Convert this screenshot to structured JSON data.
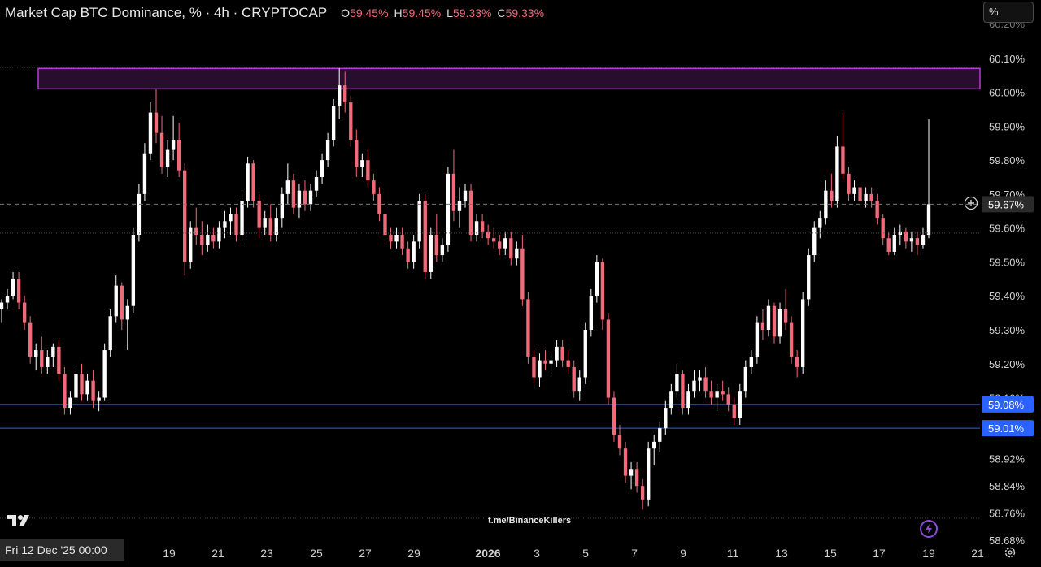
{
  "header": {
    "title": "Market Cap BTC Dominance, % · 4h · CRYPTOCAP",
    "ohlc": [
      {
        "key": "O",
        "value": "59.45%"
      },
      {
        "key": "H",
        "value": "59.45%"
      },
      {
        "key": "L",
        "value": "59.33%"
      },
      {
        "key": "C",
        "value": "59.33%"
      }
    ]
  },
  "unit_selector": "%",
  "watermark": "t.me/BinanceKillers",
  "crosshair_date": "Fri 12 Dec '25   00:00",
  "colors": {
    "background": "#000000",
    "up": "#ffffff",
    "down": "#f06a7a",
    "zone": "#b43cd2",
    "support_line": "#2962ff",
    "axis_text": "#d0d0d0"
  },
  "chart_data": {
    "type": "candlestick",
    "symbol": "BTC.D",
    "timeframe": "4h",
    "ylim": [
      58.68,
      60.2
    ],
    "y_ticks": [
      "60.10%",
      "60.00%",
      "59.90%",
      "59.80%",
      "59.70%",
      "59.60%",
      "59.50%",
      "59.40%",
      "59.30%",
      "59.20%",
      "59.10%",
      "58.92%",
      "58.84%",
      "58.76%",
      "58.68%"
    ],
    "x_ticks": [
      "19",
      "21",
      "23",
      "25",
      "27",
      "29",
      "2026",
      "3",
      "5",
      "7",
      "9",
      "11",
      "13",
      "15",
      "17",
      "19",
      "21"
    ],
    "last_price": "59.67%",
    "supply_zone": {
      "low": 60.01,
      "high": 60.07
    },
    "support_lines": [
      {
        "value": 59.08,
        "label": "59.08%"
      },
      {
        "value": 59.01,
        "label": "59.01%"
      }
    ],
    "candles": [
      [
        59.36,
        59.39,
        59.32,
        59.38
      ],
      [
        59.38,
        59.42,
        59.36,
        59.4
      ],
      [
        59.4,
        59.47,
        59.39,
        59.45
      ],
      [
        59.45,
        59.47,
        59.36,
        59.38
      ],
      [
        59.38,
        59.4,
        59.3,
        59.32
      ],
      [
        59.32,
        59.34,
        59.2,
        59.22
      ],
      [
        59.22,
        59.26,
        59.18,
        59.24
      ],
      [
        59.24,
        59.28,
        59.17,
        59.19
      ],
      [
        59.19,
        59.24,
        59.17,
        59.22
      ],
      [
        59.22,
        59.26,
        59.19,
        59.25
      ],
      [
        59.25,
        59.27,
        59.15,
        59.17
      ],
      [
        59.17,
        59.19,
        59.05,
        59.07
      ],
      [
        59.07,
        59.12,
        59.05,
        59.1
      ],
      [
        59.1,
        59.19,
        59.09,
        59.17
      ],
      [
        59.17,
        59.2,
        59.09,
        59.11
      ],
      [
        59.11,
        59.17,
        59.09,
        59.15
      ],
      [
        59.15,
        59.18,
        59.07,
        59.09
      ],
      [
        59.09,
        59.12,
        59.06,
        59.1
      ],
      [
        59.1,
        59.26,
        59.09,
        59.24
      ],
      [
        59.24,
        59.36,
        59.22,
        59.34
      ],
      [
        59.34,
        59.46,
        59.32,
        59.43
      ],
      [
        59.43,
        59.44,
        59.3,
        59.33
      ],
      [
        59.33,
        59.39,
        59.24,
        59.37
      ],
      [
        59.37,
        59.6,
        59.35,
        59.58
      ],
      [
        59.58,
        59.73,
        59.56,
        59.7
      ],
      [
        59.7,
        59.85,
        59.68,
        59.82
      ],
      [
        59.82,
        59.97,
        59.8,
        59.94
      ],
      [
        59.94,
        60.01,
        59.85,
        59.88
      ],
      [
        59.88,
        59.93,
        59.76,
        59.78
      ],
      [
        59.78,
        59.86,
        59.75,
        59.83
      ],
      [
        59.83,
        59.93,
        59.8,
        59.86
      ],
      [
        59.86,
        59.91,
        59.75,
        59.77
      ],
      [
        59.77,
        59.79,
        59.46,
        59.5
      ],
      [
        59.5,
        59.62,
        59.48,
        59.6
      ],
      [
        59.6,
        59.66,
        59.55,
        59.58
      ],
      [
        59.58,
        59.62,
        59.52,
        59.55
      ],
      [
        59.55,
        59.61,
        59.53,
        59.58
      ],
      [
        59.58,
        59.6,
        59.54,
        59.56
      ],
      [
        59.56,
        59.62,
        59.54,
        59.6
      ],
      [
        59.6,
        59.65,
        59.57,
        59.62
      ],
      [
        59.62,
        59.66,
        59.58,
        59.64
      ],
      [
        59.64,
        59.66,
        59.56,
        59.58
      ],
      [
        59.58,
        59.7,
        59.56,
        59.68
      ],
      [
        59.68,
        59.81,
        59.66,
        59.79
      ],
      [
        59.79,
        59.8,
        59.66,
        59.68
      ],
      [
        59.68,
        59.7,
        59.57,
        59.6
      ],
      [
        59.6,
        59.65,
        59.58,
        59.63
      ],
      [
        59.63,
        59.67,
        59.56,
        59.58
      ],
      [
        59.58,
        59.66,
        59.56,
        59.63
      ],
      [
        59.63,
        59.72,
        59.6,
        59.7
      ],
      [
        59.7,
        59.79,
        59.67,
        59.74
      ],
      [
        59.74,
        59.76,
        59.64,
        59.66
      ],
      [
        59.66,
        59.73,
        59.63,
        59.71
      ],
      [
        59.71,
        59.74,
        59.65,
        59.67
      ],
      [
        59.67,
        59.73,
        59.65,
        59.71
      ],
      [
        59.71,
        59.77,
        59.69,
        59.75
      ],
      [
        59.75,
        59.82,
        59.73,
        59.8
      ],
      [
        59.8,
        59.88,
        59.78,
        59.86
      ],
      [
        59.86,
        59.98,
        59.84,
        59.96
      ],
      [
        59.96,
        60.07,
        59.92,
        60.02
      ],
      [
        60.02,
        60.06,
        59.94,
        59.97
      ],
      [
        59.97,
        59.99,
        59.84,
        59.86
      ],
      [
        59.86,
        59.89,
        59.75,
        59.78
      ],
      [
        59.78,
        59.82,
        59.75,
        59.8
      ],
      [
        59.8,
        59.83,
        59.72,
        59.74
      ],
      [
        59.74,
        59.76,
        59.68,
        59.7
      ],
      [
        59.7,
        59.72,
        59.62,
        59.64
      ],
      [
        59.64,
        59.66,
        59.56,
        59.58
      ],
      [
        59.58,
        59.6,
        59.54,
        59.56
      ],
      [
        59.56,
        59.6,
        59.54,
        59.58
      ],
      [
        59.58,
        59.6,
        59.52,
        59.54
      ],
      [
        59.54,
        59.56,
        59.48,
        59.5
      ],
      [
        59.5,
        59.58,
        59.48,
        59.56
      ],
      [
        59.56,
        59.7,
        59.54,
        59.68
      ],
      [
        59.68,
        59.7,
        59.45,
        59.47
      ],
      [
        59.47,
        59.6,
        59.45,
        59.58
      ],
      [
        59.58,
        59.64,
        59.5,
        59.52
      ],
      [
        59.52,
        59.57,
        59.5,
        59.55
      ],
      [
        59.55,
        59.78,
        59.53,
        59.76
      ],
      [
        59.76,
        59.83,
        59.62,
        59.65
      ],
      [
        59.65,
        59.72,
        59.6,
        59.68
      ],
      [
        59.68,
        59.73,
        59.66,
        59.71
      ],
      [
        59.71,
        59.73,
        59.56,
        59.58
      ],
      [
        59.58,
        59.64,
        59.56,
        59.62
      ],
      [
        59.62,
        59.64,
        59.57,
        59.59
      ],
      [
        59.59,
        59.61,
        59.55,
        59.57
      ],
      [
        59.57,
        59.6,
        59.54,
        59.56
      ],
      [
        59.56,
        59.58,
        59.52,
        59.54
      ],
      [
        59.54,
        59.59,
        59.52,
        59.57
      ],
      [
        59.57,
        59.59,
        59.49,
        59.51
      ],
      [
        59.51,
        59.56,
        59.49,
        59.54
      ],
      [
        59.54,
        59.58,
        59.37,
        59.39
      ],
      [
        59.39,
        59.41,
        59.2,
        59.22
      ],
      [
        59.22,
        59.24,
        59.14,
        59.16
      ],
      [
        59.16,
        59.23,
        59.13,
        59.21
      ],
      [
        59.21,
        59.24,
        59.18,
        59.2
      ],
      [
        59.2,
        59.23,
        59.17,
        59.21
      ],
      [
        59.21,
        59.27,
        59.19,
        59.25
      ],
      [
        59.25,
        59.27,
        59.19,
        59.21
      ],
      [
        59.21,
        59.24,
        59.17,
        59.19
      ],
      [
        59.19,
        59.21,
        59.1,
        59.12
      ],
      [
        59.12,
        59.18,
        59.09,
        59.16
      ],
      [
        59.16,
        59.32,
        59.14,
        59.3
      ],
      [
        59.3,
        59.42,
        59.28,
        59.4
      ],
      [
        59.4,
        59.52,
        59.38,
        59.5
      ],
      [
        59.5,
        59.51,
        59.3,
        59.33
      ],
      [
        59.33,
        59.35,
        59.08,
        59.1
      ],
      [
        59.1,
        59.12,
        58.97,
        58.99
      ],
      [
        58.99,
        59.02,
        58.93,
        58.95
      ],
      [
        58.95,
        58.97,
        58.85,
        58.87
      ],
      [
        58.87,
        58.91,
        58.83,
        58.89
      ],
      [
        58.89,
        58.91,
        58.82,
        58.84
      ],
      [
        58.84,
        58.86,
        58.77,
        58.8
      ],
      [
        58.8,
        58.97,
        58.78,
        58.95
      ],
      [
        58.95,
        58.99,
        58.9,
        58.97
      ],
      [
        58.97,
        59.03,
        58.94,
        59.01
      ],
      [
        59.01,
        59.09,
        58.99,
        59.07
      ],
      [
        59.07,
        59.14,
        59.05,
        59.12
      ],
      [
        59.12,
        59.2,
        59.1,
        59.17
      ],
      [
        59.17,
        59.18,
        59.05,
        59.07
      ],
      [
        59.07,
        59.14,
        59.05,
        59.12
      ],
      [
        59.12,
        59.18,
        59.1,
        59.15
      ],
      [
        59.15,
        59.18,
        59.12,
        59.16
      ],
      [
        59.16,
        59.19,
        59.1,
        59.12
      ],
      [
        59.12,
        59.15,
        59.08,
        59.1
      ],
      [
        59.1,
        59.14,
        59.06,
        59.12
      ],
      [
        59.12,
        59.15,
        59.09,
        59.11
      ],
      [
        59.11,
        59.13,
        59.06,
        59.08
      ],
      [
        59.08,
        59.1,
        59.02,
        59.04
      ],
      [
        59.04,
        59.14,
        59.02,
        59.12
      ],
      [
        59.12,
        59.21,
        59.1,
        59.19
      ],
      [
        59.19,
        59.24,
        59.17,
        59.22
      ],
      [
        59.22,
        59.34,
        59.2,
        59.32
      ],
      [
        59.32,
        59.36,
        59.27,
        59.3
      ],
      [
        59.3,
        59.39,
        59.28,
        59.37
      ],
      [
        59.37,
        59.38,
        59.26,
        59.28
      ],
      [
        59.28,
        59.38,
        59.26,
        59.36
      ],
      [
        59.36,
        59.42,
        59.3,
        59.32
      ],
      [
        59.32,
        59.34,
        59.2,
        59.22
      ],
      [
        59.22,
        59.24,
        59.16,
        59.19
      ],
      [
        59.19,
        59.41,
        59.17,
        59.39
      ],
      [
        59.39,
        59.54,
        59.37,
        59.52
      ],
      [
        59.52,
        59.62,
        59.5,
        59.6
      ],
      [
        59.6,
        59.65,
        59.57,
        59.63
      ],
      [
        59.63,
        59.74,
        59.61,
        59.71
      ],
      [
        59.71,
        59.76,
        59.66,
        59.68
      ],
      [
        59.68,
        59.87,
        59.66,
        59.84
      ],
      [
        59.84,
        59.94,
        59.74,
        59.76
      ],
      [
        59.76,
        59.78,
        59.68,
        59.7
      ],
      [
        59.7,
        59.74,
        59.68,
        59.72
      ],
      [
        59.72,
        59.73,
        59.66,
        59.68
      ],
      [
        59.68,
        59.72,
        59.66,
        59.7
      ],
      [
        59.7,
        59.72,
        59.66,
        59.68
      ],
      [
        59.68,
        59.7,
        59.61,
        59.63
      ],
      [
        59.63,
        59.64,
        59.55,
        59.57
      ],
      [
        59.57,
        59.59,
        59.52,
        59.53
      ],
      [
        59.53,
        59.6,
        59.52,
        59.58
      ],
      [
        59.58,
        59.61,
        59.55,
        59.59
      ],
      [
        59.59,
        59.6,
        59.54,
        59.56
      ],
      [
        59.56,
        59.59,
        59.53,
        59.57
      ],
      [
        59.57,
        59.59,
        59.52,
        59.55
      ],
      [
        59.55,
        59.6,
        59.54,
        59.58
      ],
      [
        59.58,
        59.92,
        59.57,
        59.67
      ]
    ]
  }
}
